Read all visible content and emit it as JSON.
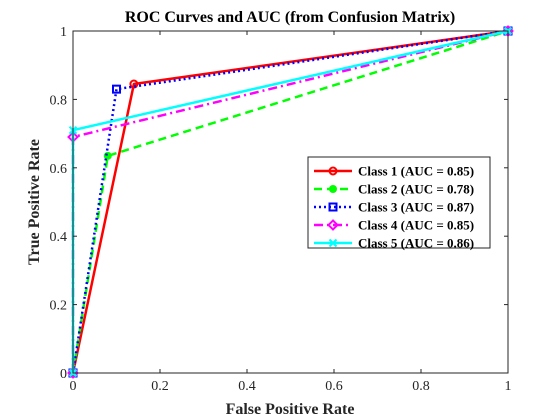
{
  "chart_data": {
    "type": "line",
    "title": "ROC Curves and AUC (from Confusion Matrix)",
    "xlabel": "False Positive Rate",
    "ylabel": "True Positive Rate",
    "xlim": [
      0,
      1
    ],
    "ylim": [
      0,
      1
    ],
    "xticks": [
      "0",
      "0.2",
      "0.4",
      "0.6",
      "0.8",
      "1"
    ],
    "yticks": [
      "0",
      "0.2",
      "0.4",
      "0.6",
      "0.8",
      "1"
    ],
    "grid": false,
    "legend_position": "right-center",
    "series": [
      {
        "name": "Class 1 (AUC = 0.85)",
        "color": "#ff0000",
        "dash": "solid",
        "marker": "circle",
        "x": [
          0,
          0.14,
          1
        ],
        "y": [
          0,
          0.845,
          1
        ]
      },
      {
        "name": "Class 2 (AUC = 0.78)",
        "color": "#00ff00",
        "dash": "dashed",
        "marker": "dot",
        "x": [
          0,
          0.08,
          1
        ],
        "y": [
          0,
          0.635,
          1
        ]
      },
      {
        "name": "Class 3 (AUC = 0.87)",
        "color": "#0000ff",
        "dash": "dotted",
        "marker": "square",
        "x": [
          0,
          0.1,
          1
        ],
        "y": [
          0,
          0.83,
          1
        ]
      },
      {
        "name": "Class 4 (AUC = 0.85)",
        "color": "#ff00ff",
        "dash": "dashdot",
        "marker": "diamond",
        "x": [
          0,
          0,
          1
        ],
        "y": [
          0,
          0.69,
          1
        ]
      },
      {
        "name": "Class 5 (AUC = 0.86)",
        "color": "#00ffff",
        "dash": "solid",
        "marker": "x",
        "x": [
          0,
          0,
          1
        ],
        "y": [
          0,
          0.71,
          1
        ]
      }
    ]
  }
}
